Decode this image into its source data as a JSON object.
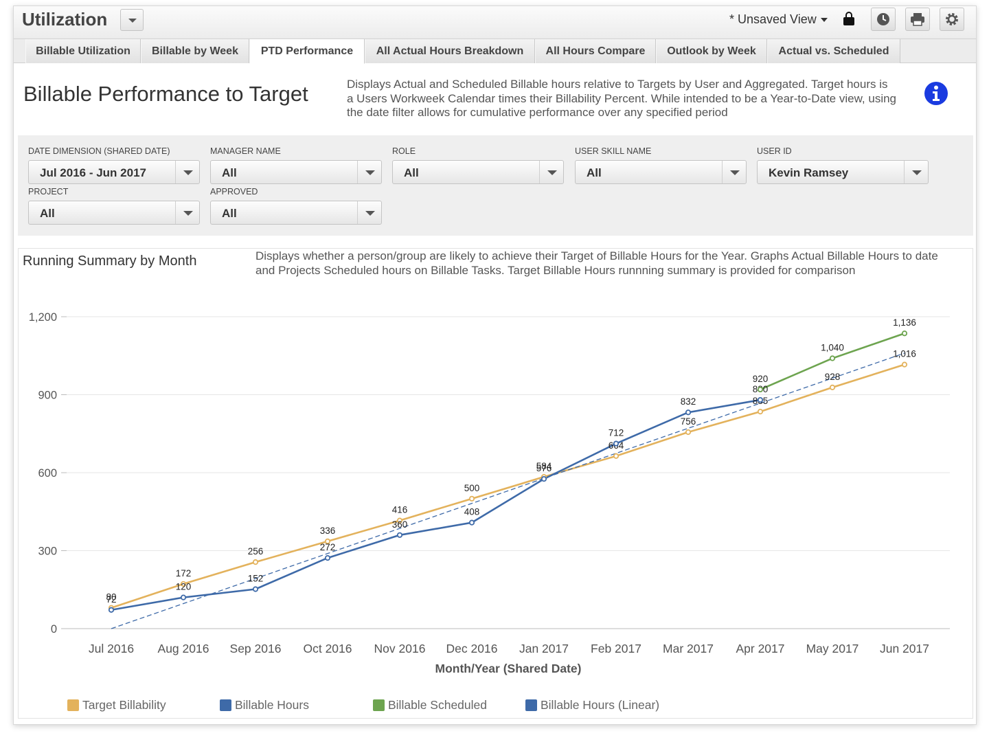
{
  "app": {
    "title": "Utilization",
    "view_label": "* Unsaved View"
  },
  "toolbar_icons": [
    "lock-icon",
    "clock-icon",
    "print-icon",
    "gear-icon"
  ],
  "tabs": [
    {
      "label": "Billable Utilization",
      "active": false
    },
    {
      "label": "Billable by Week",
      "active": false
    },
    {
      "label": "PTD Performance",
      "active": true
    },
    {
      "label": "All Actual Hours Breakdown",
      "active": false
    },
    {
      "label": "All Hours Compare",
      "active": false
    },
    {
      "label": "Outlook by Week",
      "active": false
    },
    {
      "label": "Actual vs. Scheduled",
      "active": false
    }
  ],
  "page": {
    "title": "Billable Performance to Target",
    "description": "Displays Actual and Scheduled Billable hours relative to Targets by User and Aggregated.  Target hours is a Users Workweek Calendar times their Billability Percent.  While intended to be a Year-to-Date view, using the date filter allows for cumulative performance over any specified period"
  },
  "filters": [
    {
      "label": "DATE DIMENSION (SHARED DATE)",
      "value": "Jul 2016 - Jun 2017"
    },
    {
      "label": "MANAGER NAME",
      "value": "All"
    },
    {
      "label": "ROLE",
      "value": "All"
    },
    {
      "label": "USER SKILL NAME",
      "value": "All"
    },
    {
      "label": "USER ID",
      "value": "Kevin Ramsey"
    },
    {
      "label": "PROJECT",
      "value": "All"
    },
    {
      "label": "APPROVED",
      "value": "All"
    }
  ],
  "chart_section": {
    "title": "Running Summary by Month",
    "description": "Displays whether a person/group are likely to achieve their Target of Billable Hours for the Year.  Graphs Actual Billable Hours to date and Projects Scheduled hours on Billable Tasks.  Target Billable Hours runnning summary is provided for comparison"
  },
  "chart_data": {
    "type": "line",
    "categories": [
      "Jul 2016",
      "Aug 2016",
      "Sep 2016",
      "Oct 2016",
      "Nov 2016",
      "Dec 2016",
      "Jan 2017",
      "Feb 2017",
      "Mar 2017",
      "Apr 2017",
      "May 2017",
      "Jun 2017"
    ],
    "xlabel": "Month/Year (Shared Date)",
    "ylabel": "",
    "ylim": [
      0,
      1200
    ],
    "yticks": [
      0,
      300,
      600,
      900,
      1200
    ],
    "ytick_labels": [
      "0",
      "300",
      "600",
      "900",
      "1,200"
    ],
    "grid": true,
    "legend_position": "bottom",
    "series": [
      {
        "name": "Target Billability",
        "color": "#e3b25c",
        "values": [
          80,
          172,
          256,
          336,
          416,
          500,
          584,
          664,
          756,
          835,
          928,
          1016
        ],
        "labels": [
          "80",
          "172",
          "256",
          "336",
          "416",
          "500",
          "584",
          "664",
          "756",
          "835",
          "928",
          "1,016"
        ]
      },
      {
        "name": "Billable Hours",
        "color": "#3e6aa8",
        "values": [
          72,
          120,
          152,
          272,
          360,
          408,
          576,
          712,
          832,
          880,
          null,
          null
        ],
        "labels": [
          "72",
          "120",
          "152",
          "272",
          "360",
          "408",
          "576",
          "712",
          "832",
          "880",
          "",
          ""
        ]
      },
      {
        "name": "Billable Scheduled",
        "color": "#6da44f",
        "values": [
          null,
          null,
          null,
          null,
          null,
          null,
          null,
          null,
          null,
          920,
          1040,
          1136
        ],
        "labels": [
          "",
          "",
          "",
          "",
          "",
          "",
          "",
          "",
          "",
          "920",
          "1,040",
          "1,136"
        ]
      },
      {
        "name": "Billable Hours (Linear)",
        "color": "#3e6aa8",
        "dashed": true,
        "values": [
          0,
          null,
          null,
          null,
          null,
          null,
          null,
          null,
          null,
          null,
          null,
          1060
        ],
        "labels": [
          "",
          "",
          "",
          "",
          "",
          "",
          "",
          "",
          "",
          "",
          "",
          ""
        ]
      }
    ]
  }
}
